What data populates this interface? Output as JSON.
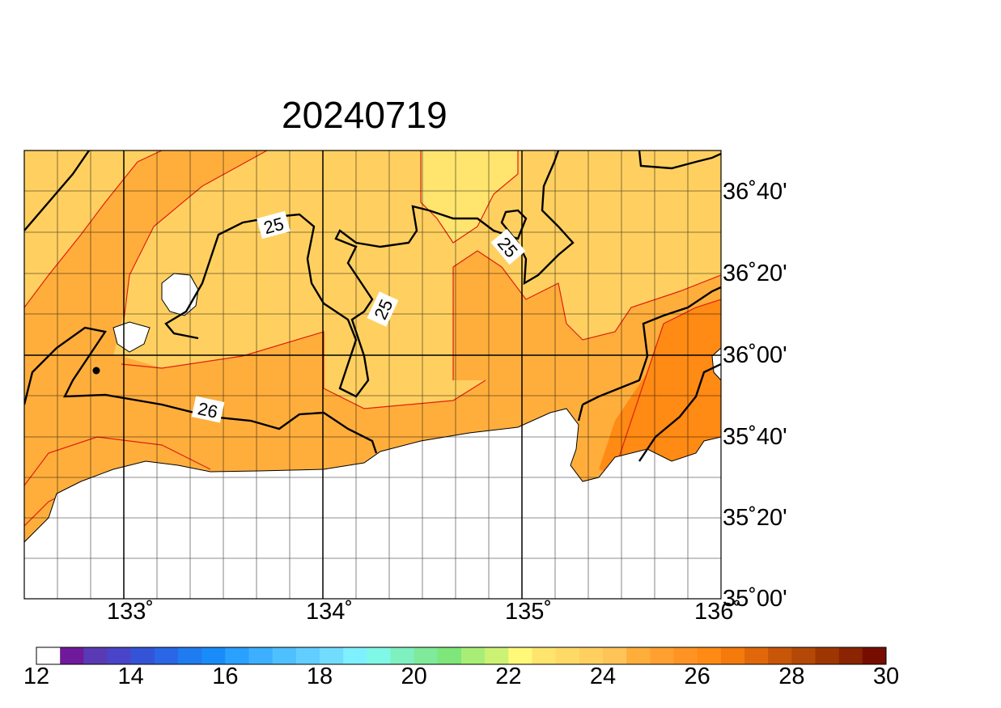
{
  "title": "20240719",
  "lat_labels": [
    "36˚40'",
    "36˚20'",
    "36˚00'",
    "35˚40'",
    "35˚20'",
    "35˚00'"
  ],
  "lon_labels": [
    "133˚",
    "134˚",
    "135˚",
    "136˚"
  ],
  "contour_labels": [
    "25",
    "25",
    "25",
    "26"
  ],
  "colorbar": {
    "labels": [
      "12",
      "14",
      "16",
      "18",
      "20",
      "22",
      "24",
      "26",
      "28",
      "30"
    ],
    "colors": [
      "#ffffff",
      "#6f1a9a",
      "#5a3ab4",
      "#4a44c8",
      "#3454d8",
      "#2a66e6",
      "#1f7cf0",
      "#1a8cfa",
      "#2aa0ff",
      "#3cb0ff",
      "#4fc0ff",
      "#62ceff",
      "#72dcff",
      "#7ff0ff",
      "#7ff8e6",
      "#7ff0c0",
      "#7fea9a",
      "#7ee67a",
      "#a8ee76",
      "#ccf274",
      "#fff878",
      "#ffe46e",
      "#ffda66",
      "#ffcf60",
      "#ffc458",
      "#ffae3c",
      "#ffa030",
      "#ff9424",
      "#ff8a14",
      "#f47a0c",
      "#e0680a",
      "#c85608",
      "#b44806",
      "#9e3604",
      "#8a2402",
      "#760e00"
    ]
  }
}
